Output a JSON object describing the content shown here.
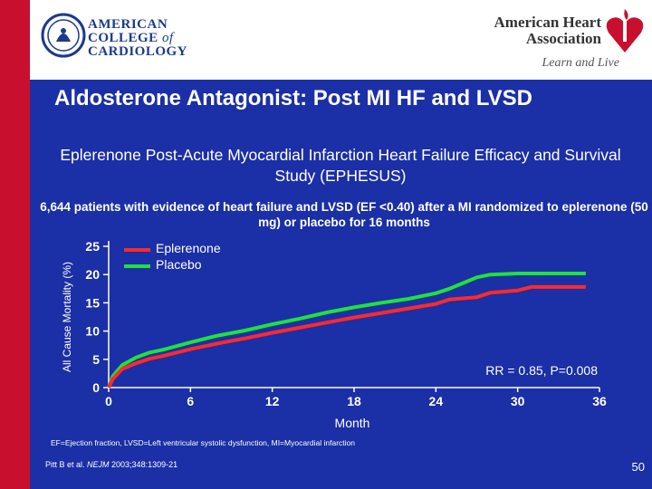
{
  "branding": {
    "acc_lines": [
      "AMERICAN",
      "COLLEGE",
      "of",
      "CARDIOLOGY"
    ],
    "aha_lines": [
      "American Heart",
      "Association"
    ],
    "aha_tagline": "Learn and Live"
  },
  "slide": {
    "title": "Aldosterone Antagonist: Post MI HF and LVSD",
    "subtitle": "Eplerenone Post-Acute Myocardial Infarction Heart Failure Efficacy and Survival Study (EPHESUS)",
    "description": "6,644 patients with evidence of heart failure and LVSD (EF <0.40) after a MI randomized to eplerenone (50 mg) or placebo for 16 months",
    "footnote": "EF=Ejection fraction, LVSD=Left ventricular systolic dysfunction, MI=Myocardial infarction",
    "citation_authors": "Pitt B et al. ",
    "citation_journal": "NEJM",
    "citation_rest": " 2003;348:1309-21",
    "page_number": "50"
  },
  "colors": {
    "background": "#1b2fa6",
    "accent_red": "#c8102e",
    "eplerenone": "#ff2a2a",
    "placebo": "#1fe23a"
  },
  "chart_data": {
    "type": "line",
    "xlabel": "Month",
    "ylabel": "All Cause Mortality (%)",
    "x_ticks": [
      0,
      6,
      12,
      18,
      24,
      30,
      36
    ],
    "y_ticks": [
      0,
      5,
      10,
      15,
      20,
      25
    ],
    "xlim": [
      0,
      36
    ],
    "ylim": [
      0,
      25
    ],
    "legend_position": "top-left",
    "annotation": "RR = 0.85, P=0.008",
    "series": [
      {
        "name": "Eplerenone",
        "color": "#ff2a2a",
        "points": [
          [
            0,
            0
          ],
          [
            0.3,
            1.5
          ],
          [
            1,
            3.3
          ],
          [
            2,
            4.3
          ],
          [
            3,
            5.1
          ],
          [
            4,
            5.6
          ],
          [
            6,
            6.8
          ],
          [
            8,
            7.8
          ],
          [
            10,
            8.7
          ],
          [
            12,
            9.7
          ],
          [
            14,
            10.6
          ],
          [
            16,
            11.5
          ],
          [
            18,
            12.4
          ],
          [
            20,
            13.2
          ],
          [
            22,
            14.0
          ],
          [
            24,
            14.8
          ],
          [
            25,
            15.6
          ],
          [
            27,
            16.0
          ],
          [
            28,
            16.8
          ],
          [
            30,
            17.2
          ],
          [
            31,
            17.8
          ],
          [
            32,
            17.8
          ],
          [
            35,
            17.8
          ]
        ]
      },
      {
        "name": "Placebo",
        "color": "#1fe23a",
        "points": [
          [
            0,
            0
          ],
          [
            0.3,
            2.0
          ],
          [
            1,
            4.0
          ],
          [
            2,
            5.3
          ],
          [
            3,
            6.2
          ],
          [
            4,
            6.7
          ],
          [
            6,
            8.0
          ],
          [
            8,
            9.2
          ],
          [
            10,
            10.1
          ],
          [
            12,
            11.2
          ],
          [
            14,
            12.2
          ],
          [
            16,
            13.3
          ],
          [
            18,
            14.2
          ],
          [
            20,
            15.0
          ],
          [
            22,
            15.7
          ],
          [
            24,
            16.7
          ],
          [
            25,
            17.5
          ],
          [
            26,
            18.5
          ],
          [
            27,
            19.5
          ],
          [
            28,
            20.0
          ],
          [
            30,
            20.2
          ],
          [
            32,
            20.2
          ],
          [
            35,
            20.2
          ]
        ]
      }
    ]
  }
}
